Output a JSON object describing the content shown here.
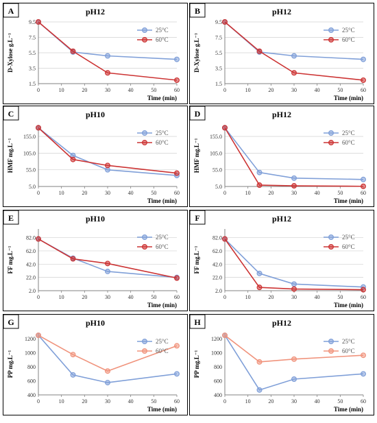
{
  "colors": {
    "c25": "#7f9fd8",
    "c60": "#cc3333",
    "c60_light": "#f0937c",
    "grid": "#d0d0d0",
    "axis": "#808080",
    "text": "#000000",
    "tick": "#333333"
  },
  "chart_data": [
    {
      "type": "line",
      "letter": "A",
      "title": "pH12",
      "ylabel": "D-Xylose g.L⁻¹",
      "xlabel": "Time (min)",
      "x": [
        0,
        15,
        30,
        60
      ],
      "xticks": [
        "0",
        "10",
        "20",
        "30",
        "40",
        "50",
        "60"
      ],
      "yticks": [
        "1.5",
        "3.5",
        "5.5",
        "7.5",
        "9.5"
      ],
      "ylim": [
        1.5,
        9.5
      ],
      "grid": true,
      "legend_position": "top-right",
      "series": [
        {
          "name": "25°C",
          "color_key": "c25",
          "values": [
            9.5,
            5.6,
            5.1,
            4.65
          ]
        },
        {
          "name": "60°C",
          "color_key": "c60",
          "values": [
            9.5,
            5.7,
            2.9,
            1.95
          ]
        }
      ]
    },
    {
      "type": "line",
      "letter": "B",
      "title": "pH12",
      "ylabel": "D-Xylose g.L⁻¹",
      "xlabel": "Time (min)",
      "x": [
        0,
        15,
        30,
        60
      ],
      "xticks": [
        "0",
        "10",
        "20",
        "30",
        "40",
        "50",
        "60"
      ],
      "yticks": [
        "1.5",
        "3.5",
        "5.5",
        "7.5",
        "9.5"
      ],
      "ylim": [
        1.5,
        9.5
      ],
      "grid": true,
      "legend_position": "top-right",
      "series": [
        {
          "name": "25°C",
          "color_key": "c25",
          "values": [
            9.5,
            5.6,
            5.1,
            4.65
          ]
        },
        {
          "name": "60°C",
          "color_key": "c60",
          "values": [
            9.5,
            5.7,
            2.9,
            1.95
          ]
        }
      ]
    },
    {
      "type": "line",
      "letter": "C",
      "title": "pH10",
      "ylabel": "HMF mg.L⁻¹",
      "xlabel": "Time (min)",
      "x": [
        0,
        15,
        30,
        60
      ],
      "xticks": [
        "0",
        "10",
        "20",
        "30",
        "40",
        "50",
        "60"
      ],
      "yticks": [
        "5.0",
        "55.0",
        "105.0",
        "155.0"
      ],
      "ylim": [
        5,
        190
      ],
      "grid": true,
      "legend_position": "top-right",
      "series": [
        {
          "name": "25°C",
          "color_key": "c25",
          "values": [
            181,
            98,
            55,
            38
          ]
        },
        {
          "name": "60°C",
          "color_key": "c60",
          "values": [
            181,
            86,
            68,
            45
          ]
        }
      ]
    },
    {
      "type": "line",
      "letter": "D",
      "title": "pH12",
      "ylabel": "HMF mg.L⁻¹",
      "xlabel": "Time (min)",
      "x": [
        0,
        15,
        30,
        60
      ],
      "xticks": [
        "0",
        "10",
        "20",
        "30",
        "40",
        "50",
        "60"
      ],
      "yticks": [
        "5.0",
        "55.0",
        "105.0",
        "155.0"
      ],
      "ylim": [
        5,
        190
      ],
      "grid": true,
      "legend_position": "top-right",
      "series": [
        {
          "name": "25°C",
          "color_key": "c25",
          "values": [
            181,
            47,
            30,
            26
          ]
        },
        {
          "name": "60°C",
          "color_key": "c60",
          "values": [
            181,
            9,
            7,
            5.5
          ]
        }
      ]
    },
    {
      "type": "line",
      "letter": "E",
      "title": "pH10",
      "ylabel": "FF mg.L⁻¹",
      "xlabel": "Time (min)",
      "x": [
        0,
        15,
        30,
        60
      ],
      "xticks": [
        "0",
        "10",
        "20",
        "30",
        "40",
        "50",
        "60"
      ],
      "yticks": [
        "2.0",
        "22.0",
        "42.0",
        "62.0",
        "82.0"
      ],
      "ylim": [
        2,
        95
      ],
      "grid": true,
      "legend_position": "top-right",
      "series": [
        {
          "name": "25°C",
          "color_key": "c25",
          "values": [
            80,
            51,
            31,
            22
          ]
        },
        {
          "name": "60°C",
          "color_key": "c60",
          "values": [
            80,
            50,
            43,
            21
          ]
        }
      ]
    },
    {
      "type": "line",
      "letter": "F",
      "title": "pH12",
      "ylabel": "FF mg.L⁻¹",
      "xlabel": "Time (min)",
      "x": [
        0,
        15,
        30,
        60
      ],
      "xticks": [
        "0",
        "10",
        "20",
        "30",
        "40",
        "50",
        "60"
      ],
      "yticks": [
        "2.0",
        "22.0",
        "42.0",
        "62.0",
        "82.0"
      ],
      "ylim": [
        2,
        95
      ],
      "grid": true,
      "legend_position": "top-right",
      "series": [
        {
          "name": "25°C",
          "color_key": "c25",
          "values": [
            80,
            28,
            12,
            7.5
          ]
        },
        {
          "name": "60°C",
          "color_key": "c60",
          "values": [
            80,
            7,
            4.5,
            3.5
          ]
        }
      ]
    },
    {
      "type": "line",
      "letter": "G",
      "title": "pH10",
      "ylabel": "PP mg.L⁻¹",
      "xlabel": "Time (min)",
      "x": [
        0,
        15,
        30,
        60
      ],
      "xticks": [
        "0",
        "10",
        "20",
        "30",
        "40",
        "50",
        "60"
      ],
      "yticks": [
        "400",
        "600",
        "800",
        "1000",
        "1200"
      ],
      "ylim": [
        400,
        1280
      ],
      "grid": false,
      "legend_position": "top-right",
      "series": [
        {
          "name": "25°C",
          "color_key": "c25",
          "values": [
            1250,
            685,
            575,
            700
          ]
        },
        {
          "name": "60°C",
          "color_key": "c60_light",
          "values": [
            1250,
            975,
            740,
            1100
          ]
        }
      ]
    },
    {
      "type": "line",
      "letter": "H",
      "title": "pH12",
      "ylabel": "PP mg.L⁻¹",
      "xlabel": "Time (min)",
      "x": [
        0,
        15,
        30,
        60
      ],
      "xticks": [
        "0",
        "10",
        "20",
        "30",
        "40",
        "50",
        "60"
      ],
      "yticks": [
        "400",
        "600",
        "800",
        "1000",
        "1200"
      ],
      "ylim": [
        400,
        1280
      ],
      "grid": false,
      "legend_position": "top-right",
      "series": [
        {
          "name": "25°C",
          "color_key": "c25",
          "values": [
            1250,
            470,
            625,
            700
          ]
        },
        {
          "name": "60°C",
          "color_key": "c60_light",
          "values": [
            1250,
            870,
            910,
            965
          ]
        }
      ]
    }
  ]
}
